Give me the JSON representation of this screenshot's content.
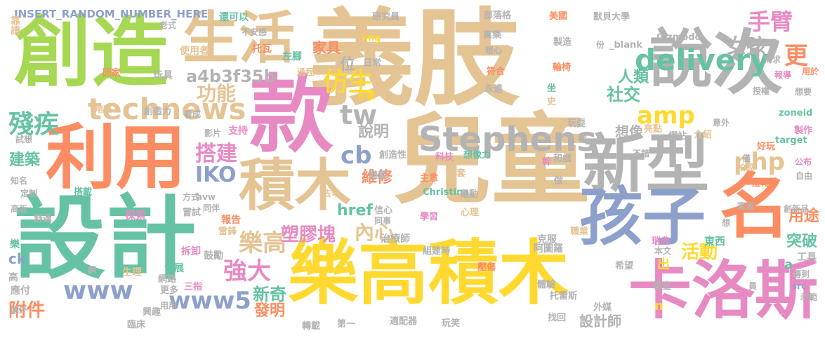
{
  "palette": {
    "tan": "#e5c494",
    "green": "#a6d854",
    "teal": "#66c2a5",
    "coral": "#fc8d62",
    "pink": "#e78ac3",
    "blue": "#8da0cb",
    "yellow": "#ffd92f",
    "gray": "#b3b3b3"
  },
  "words": [
    {
      "text": "義肢",
      "color": "tan"
    },
    {
      "text": "創造",
      "color": "green"
    },
    {
      "text": "款",
      "color": "pink"
    },
    {
      "text": "設計",
      "color": "teal"
    },
    {
      "text": "利用",
      "color": "coral"
    },
    {
      "text": "兒童",
      "color": "tan"
    },
    {
      "text": "樂高積木",
      "color": "yellow"
    },
    {
      "text": "說",
      "color": "gray"
    },
    {
      "text": "次",
      "color": "gray"
    },
    {
      "text": "新型",
      "color": "gray"
    },
    {
      "text": "孩子",
      "color": "blue"
    },
    {
      "text": "名",
      "color": "coral"
    },
    {
      "text": "卡洛斯",
      "color": "pink"
    },
    {
      "text": "積木",
      "color": "tan"
    },
    {
      "text": "生活",
      "color": "tan"
    },
    {
      "text": "Stephens",
      "color": "gray"
    },
    {
      "text": "technews",
      "color": "tan"
    },
    {
      "text": "delivery",
      "color": "teal"
    },
    {
      "text": "殘疾",
      "color": "teal"
    },
    {
      "text": "手臂",
      "color": "pink"
    },
    {
      "text": "更",
      "color": "coral"
    },
    {
      "text": "女孩",
      "color": "gray"
    },
    {
      "text": "amp",
      "color": "yellow"
    },
    {
      "text": "仿生",
      "color": "yellow"
    },
    {
      "text": "tw",
      "color": "gray"
    },
    {
      "text": "php",
      "color": "tan"
    },
    {
      "text": "搭建",
      "color": "pink"
    },
    {
      "text": "cb",
      "color": "blue"
    },
    {
      "text": "說明",
      "color": "gray"
    },
    {
      "text": "IKO",
      "color": "blue"
    },
    {
      "text": "功能",
      "color": "tan"
    },
    {
      "text": "a4b3f35b",
      "color": "gray"
    },
    {
      "text": "位",
      "color": "gray"
    },
    {
      "text": "家具",
      "color": "coral"
    },
    {
      "text": "樂高",
      "color": "tan"
    },
    {
      "text": "強大",
      "color": "pink"
    },
    {
      "text": "www5",
      "color": "blue"
    },
    {
      "text": "www",
      "color": "blue"
    },
    {
      "text": "附件",
      "color": "coral"
    },
    {
      "text": "建築",
      "color": "teal"
    },
    {
      "text": "內心",
      "color": "tan"
    },
    {
      "text": "塑膠塊",
      "color": "pink"
    },
    {
      "text": "活動",
      "color": "yellow"
    },
    {
      "text": "維修",
      "color": "coral"
    },
    {
      "text": "社交",
      "color": "teal"
    },
    {
      "text": "人類",
      "color": "teal"
    },
    {
      "text": "突破",
      "color": "teal"
    },
    {
      "text": "用途",
      "color": "coral"
    },
    {
      "text": "新奇",
      "color": "teal"
    },
    {
      "text": "發明",
      "color": "coral"
    },
    {
      "text": "設計師",
      "color": "gray"
    },
    {
      "text": "href",
      "color": "teal"
    },
    {
      "text": "想像",
      "color": "gray"
    },
    {
      "text": "INSERT_RANDOM_NUMBER_HERE",
      "color": "blue"
    },
    {
      "text": "還可以",
      "color": "teal"
    },
    {
      "text": "研究員",
      "color": "gray"
    },
    {
      "text": "部落格",
      "color": "gray"
    },
    {
      "text": "美國",
      "color": "coral"
    },
    {
      "text": "默貝大學",
      "color": "gray"
    },
    {
      "text": "靠譜",
      "color": "tan"
    },
    {
      "text": "老式",
      "color": "gray"
    },
    {
      "text": "不安感",
      "color": "gray"
    },
    {
      "text": "托瓦",
      "color": "coral"
    },
    {
      "text": "使用者",
      "color": "tan"
    },
    {
      "text": "玩具",
      "color": "gray"
    },
    {
      "text": "回家",
      "color": "coral"
    },
    {
      "text": "img",
      "color": "yellow"
    },
    {
      "text": "左腳",
      "color": "teal"
    },
    {
      "text": "日常",
      "color": "gray"
    },
    {
      "text": "過程",
      "color": "tan"
    },
    {
      "text": "寓樂",
      "color": "gray"
    },
    {
      "text": "符合",
      "color": "coral"
    },
    {
      "text": "手掌",
      "color": "yellow"
    },
    {
      "text": "永遠",
      "color": "gray"
    },
    {
      "text": "Gizmodo",
      "color": "gray"
    },
    {
      "text": "份",
      "color": "gray"
    },
    {
      "text": "_blank",
      "color": "gray"
    },
    {
      "text": "製造",
      "color": "gray"
    },
    {
      "text": "輪椅",
      "color": "coral"
    },
    {
      "text": "需求",
      "color": "gray"
    },
    {
      "text": "報導",
      "color": "pink"
    },
    {
      "text": "用於",
      "color": "coral"
    },
    {
      "text": "授權",
      "color": "gray"
    },
    {
      "text": "想要",
      "color": "gray"
    },
    {
      "text": "意外",
      "color": "gray"
    },
    {
      "text": "坐",
      "color": "teal"
    },
    {
      "text": "史",
      "color": "tan"
    },
    {
      "text": "用樂",
      "color": "tan"
    },
    {
      "text": "創造力",
      "color": "gray"
    },
    {
      "text": "看成",
      "color": "gray"
    },
    {
      "text": "支持",
      "color": "pink"
    },
    {
      "text": "影片",
      "color": "gray"
    },
    {
      "text": "試想",
      "color": "gray"
    },
    {
      "text": "玩耍",
      "color": "gray"
    },
    {
      "text": "亮點",
      "color": "tan"
    },
    {
      "text": "網站",
      "color": "gray"
    },
    {
      "text": "介紹",
      "color": "tan"
    },
    {
      "text": "zoneid",
      "color": "teal"
    },
    {
      "text": "製作",
      "color": "pink"
    },
    {
      "text": "好玩",
      "color": "coral"
    },
    {
      "text": "僅",
      "color": "gray"
    },
    {
      "text": "target",
      "color": "teal"
    },
    {
      "text": "創造性",
      "color": "gray"
    },
    {
      "text": "科技",
      "color": "pink"
    },
    {
      "text": "想像力",
      "color": "teal"
    },
    {
      "text": "幹",
      "color": "pink"
    },
    {
      "text": "和諧",
      "color": "gray"
    },
    {
      "text": "不錯",
      "color": "gray"
    },
    {
      "text": "拍成",
      "color": "tan"
    },
    {
      "text": "扭轉",
      "color": "coral"
    },
    {
      "text": "公布",
      "color": "pink"
    },
    {
      "text": "自由",
      "color": "gray"
    },
    {
      "text": "知名",
      "color": "gray"
    },
    {
      "text": "定制",
      "color": "gray"
    },
    {
      "text": "搭載",
      "color": "teal"
    },
    {
      "text": "方式",
      "color": "gray"
    },
    {
      "text": "avw",
      "color": "gray"
    },
    {
      "text": "樂趣",
      "color": "gray"
    },
    {
      "text": "主意",
      "color": "coral"
    },
    {
      "text": "套",
      "color": "tan"
    },
    {
      "text": "Christina",
      "color": "teal"
    },
    {
      "text": "做",
      "color": "gray"
    },
    {
      "text": "電動",
      "color": "gray"
    },
    {
      "text": "寫道",
      "color": "gray"
    },
    {
      "text": "創新品",
      "color": "gray"
    },
    {
      "text": "高版",
      "color": "gray"
    },
    {
      "text": "舒適",
      "color": "gray"
    },
    {
      "text": "同伴",
      "color": "gray"
    },
    {
      "text": "信心",
      "color": "gray"
    },
    {
      "text": "同事",
      "color": "gray"
    },
    {
      "text": "學習",
      "color": "pink"
    },
    {
      "text": "心理",
      "color": "tan"
    },
    {
      "text": "去年",
      "color": "tan"
    },
    {
      "text": "探索",
      "color": "pink"
    },
    {
      "text": "嘗試",
      "color": "gray"
    },
    {
      "text": "報告",
      "color": "coral"
    },
    {
      "text": "雷鋒",
      "color": "tan"
    },
    {
      "text": "職業",
      "color": "tan"
    },
    {
      "text": "瑞典",
      "color": "pink"
    },
    {
      "text": "想",
      "color": "gray"
    },
    {
      "text": "工具",
      "color": "gray"
    },
    {
      "text": "樂",
      "color": "teal"
    },
    {
      "text": "ck",
      "color": "blue"
    },
    {
      "text": "拆卸",
      "color": "pink"
    },
    {
      "text": "鼓勵",
      "color": "gray"
    },
    {
      "text": "治療師",
      "color": "gray"
    },
    {
      "text": "阿圖羅",
      "color": "gray"
    },
    {
      "text": "克服",
      "color": "gray"
    },
    {
      "text": "組建時",
      "color": "gray"
    },
    {
      "text": "本文",
      "color": "gray"
    },
    {
      "text": "東西",
      "color": "teal"
    },
    {
      "text": "傳到",
      "color": "gray"
    },
    {
      "text": "a",
      "color": "teal"
    },
    {
      "text": "出",
      "color": "yellow"
    },
    {
      "text": "src",
      "color": "blue"
    },
    {
      "text": "網",
      "color": "gray"
    },
    {
      "text": "高",
      "color": "gray"
    },
    {
      "text": "應付",
      "color": "gray"
    },
    {
      "text": "生理",
      "color": "tan"
    },
    {
      "text": "發展",
      "color": "teal"
    },
    {
      "text": "壓傷",
      "color": "coral"
    },
    {
      "text": "希望",
      "color": "gray"
    },
    {
      "text": "霍金",
      "color": "gray"
    },
    {
      "text": "國外",
      "color": "gray"
    },
    {
      "text": "網路",
      "color": "gray"
    },
    {
      "text": "更多",
      "color": "gray"
    },
    {
      "text": "三指",
      "color": "pink"
    },
    {
      "text": "體驗",
      "color": "gray"
    },
    {
      "text": "托雷斯",
      "color": "gray"
    },
    {
      "text": "員",
      "color": "gray"
    },
    {
      "text": "示範",
      "color": "gray"
    },
    {
      "text": "用用",
      "color": "gray"
    },
    {
      "text": "興趣",
      "color": "gray"
    },
    {
      "text": "臨床",
      "color": "gray"
    },
    {
      "text": "n",
      "color": "yellow"
    },
    {
      "text": "外媒",
      "color": "gray"
    },
    {
      "text": "找回",
      "color": "gray"
    },
    {
      "text": "轉載",
      "color": "gray"
    },
    {
      "text": "第一",
      "color": "gray"
    },
    {
      "text": "適配器",
      "color": "gray"
    },
    {
      "text": "玩笑",
      "color": "gray"
    },
    {
      "text": "暖心",
      "color": "gray"
    }
  ]
}
